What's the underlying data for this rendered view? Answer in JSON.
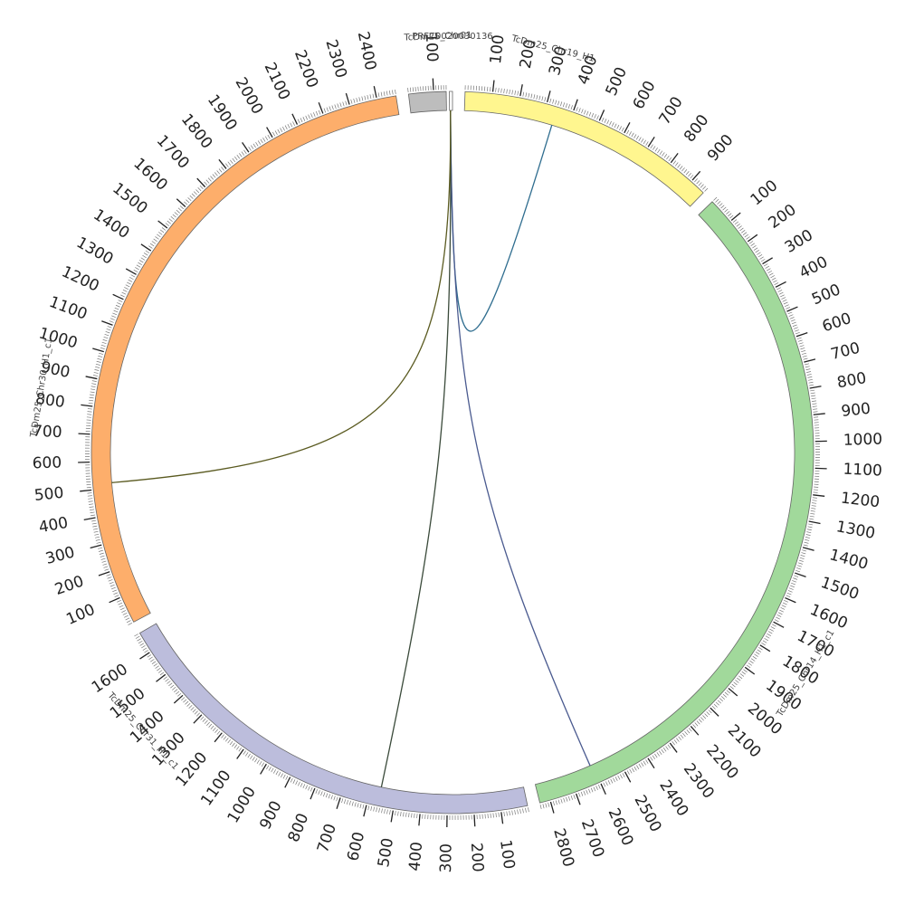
{
  "diagram": {
    "type": "circos",
    "segments": [
      {
        "id": "chr19",
        "name": "TcDm25_Chr19_H1",
        "color": "#fff68f",
        "length": 960,
        "tick_step": 100,
        "ticks": [
          "100",
          "200",
          "300",
          "400",
          "500",
          "600",
          "700",
          "800",
          "900"
        ]
      },
      {
        "id": "chr14",
        "name": "TcDm25_Chr14_H1_c1",
        "color": "#a1d99b",
        "length": 2840,
        "tick_step": 100,
        "ticks": [
          "100",
          "200",
          "300",
          "400",
          "500",
          "600",
          "700",
          "800",
          "900",
          "1000",
          "1100",
          "1200",
          "1300",
          "1400",
          "1500",
          "1600",
          "1700",
          "1800",
          "1900",
          "2000",
          "2100",
          "2200",
          "2300",
          "2400",
          "2500",
          "2600",
          "2700",
          "2800"
        ]
      },
      {
        "id": "chr31",
        "name": "TcDm25_Chr31_H1_c1",
        "color": "#bcbddc",
        "length": 1680,
        "tick_step": 100,
        "ticks": [
          "100",
          "200",
          "300",
          "400",
          "500",
          "600",
          "700",
          "800",
          "900",
          "1000",
          "1100",
          "1200",
          "1300",
          "1400",
          "1500",
          "1600"
        ]
      },
      {
        "id": "chr30",
        "name": "TcDm25_Chr30_H1_c1",
        "color": "#fdae6b",
        "length": 2470,
        "tick_step": 100,
        "ticks": [
          "100",
          "200",
          "300",
          "400",
          "500",
          "600",
          "700",
          "800",
          "900",
          "1000",
          "1100",
          "1200",
          "1300",
          "1400",
          "1500",
          "1600",
          "1700",
          "1800",
          "1900",
          "2000",
          "2100",
          "2200",
          "2300",
          "2400"
        ]
      },
      {
        "id": "chr01",
        "name": "TcDm25_Chr01",
        "color": "#bdbdbd",
        "length": 150,
        "tick_step": 100,
        "ticks": [
          "100"
        ]
      },
      {
        "id": "query",
        "name": "PRFC0020030136",
        "color": "#ffffff",
        "length": 6,
        "tick_step": 100,
        "ticks": []
      }
    ],
    "links": [
      {
        "from": "query",
        "to": "chr19",
        "to_pos": 340,
        "color": "#2f6d8f"
      },
      {
        "from": "query",
        "to": "chr14",
        "to_pos": 2610,
        "color": "#4a5a8f"
      },
      {
        "from": "query",
        "to": "chr31",
        "to_pos": 560,
        "color": "#3a4a3a"
      },
      {
        "from": "query",
        "to": "chr30",
        "to_pos": 520,
        "color": "#5a5a20"
      }
    ]
  }
}
